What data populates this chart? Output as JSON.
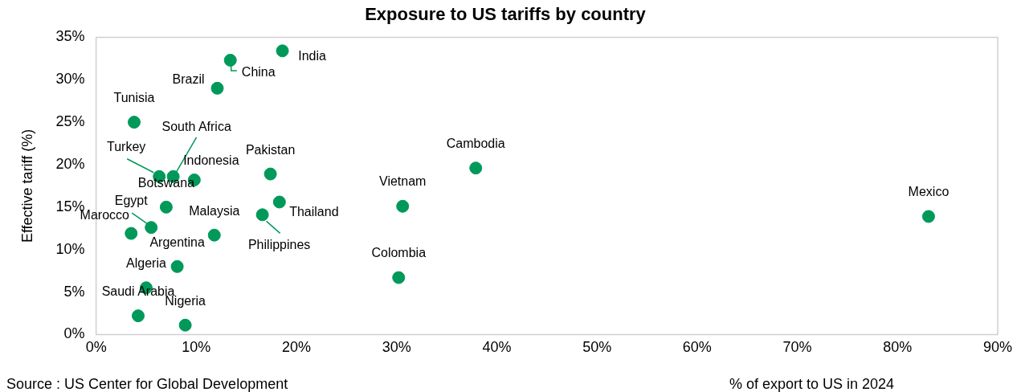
{
  "chart_data": {
    "type": "scatter",
    "title": "Exposure to US tariffs by country",
    "xlabel": "% of export to US in 2024",
    "ylabel": "Effective tariff (%)",
    "x": [
      18.6,
      13.4,
      12.1,
      3.8,
      7.7,
      6.3,
      9.8,
      7.0,
      17.4,
      5.5,
      3.5,
      18.3,
      16.6,
      11.8,
      8.1,
      5.0,
      4.2,
      8.9,
      37.9,
      30.6,
      30.2,
      83.1
    ],
    "series": [
      {
        "color": "#00995a",
        "values": [
          33.4,
          32.3,
          29.0,
          25.0,
          18.6,
          18.6,
          18.2,
          15.0,
          18.9,
          12.6,
          11.9,
          15.6,
          14.1,
          11.7,
          8.0,
          5.5,
          2.2,
          1.1,
          19.6,
          15.1,
          6.7,
          13.9
        ]
      }
    ],
    "annotations": [
      {
        "text": "India",
        "x": 18.6,
        "y": 33.4
      },
      {
        "text": "China",
        "x": 13.4,
        "y": 32.3
      },
      {
        "text": "Brazil",
        "x": 12.1,
        "y": 29.0
      },
      {
        "text": "Tunisia",
        "x": 3.8,
        "y": 25.0
      },
      {
        "text": "South Africa",
        "x": 7.7,
        "y": 18.6
      },
      {
        "text": "Turkey",
        "x": 6.3,
        "y": 18.6
      },
      {
        "text": "Indonesia",
        "x": 9.8,
        "y": 18.2
      },
      {
        "text": "Botswana",
        "x": 7.0,
        "y": 15.0
      },
      {
        "text": "Pakistan",
        "x": 17.4,
        "y": 18.9
      },
      {
        "text": "Egypt",
        "x": 5.5,
        "y": 12.6
      },
      {
        "text": "Marocco",
        "x": 3.5,
        "y": 11.9
      },
      {
        "text": "Thailand",
        "x": 18.3,
        "y": 15.6
      },
      {
        "text": "Philippines",
        "x": 16.6,
        "y": 14.1
      },
      {
        "text": "Malaysia",
        "x": 11.8,
        "y": 11.7
      },
      {
        "text": "Argentina",
        "x": 8.1,
        "y": 8.0
      },
      {
        "text": "Algeria",
        "x": 5.0,
        "y": 5.5
      },
      {
        "text": "Saudi Arabia",
        "x": 4.2,
        "y": 2.2
      },
      {
        "text": "Nigeria",
        "x": 8.9,
        "y": 1.1
      },
      {
        "text": "Cambodia",
        "x": 37.9,
        "y": 19.6
      },
      {
        "text": "Vietnam",
        "x": 30.6,
        "y": 15.1
      },
      {
        "text": "Colombia",
        "x": 30.2,
        "y": 6.7
      },
      {
        "text": "Mexico",
        "x": 83.1,
        "y": 13.9
      },
      "Source : US Center for Global Development"
    ],
    "xlim": [
      0,
      90
    ],
    "xticks": [
      {
        "value": 0,
        "label": "0%"
      },
      {
        "value": 10,
        "label": "10%"
      },
      {
        "value": 20,
        "label": "20%"
      },
      {
        "value": 30,
        "label": "30%"
      },
      {
        "value": 40,
        "label": "40%"
      },
      {
        "value": 50,
        "label": "50%"
      },
      {
        "value": 60,
        "label": "60%"
      },
      {
        "value": 70,
        "label": "70%"
      },
      {
        "value": 80,
        "label": "80%"
      },
      {
        "value": 90,
        "label": "90%"
      }
    ],
    "ylim": [
      0,
      35
    ],
    "yticks": [
      {
        "value": 0,
        "label": "0%"
      },
      {
        "value": 5,
        "label": "5%"
      },
      {
        "value": 10,
        "label": "10%"
      },
      {
        "value": 15,
        "label": "15%"
      },
      {
        "value": 20,
        "label": "20%"
      },
      {
        "value": 25,
        "label": "25%"
      },
      {
        "value": 30,
        "label": "30%"
      },
      {
        "value": 35,
        "label": "35%"
      }
    ],
    "marker": "circle",
    "grid": false,
    "legend": false
  }
}
